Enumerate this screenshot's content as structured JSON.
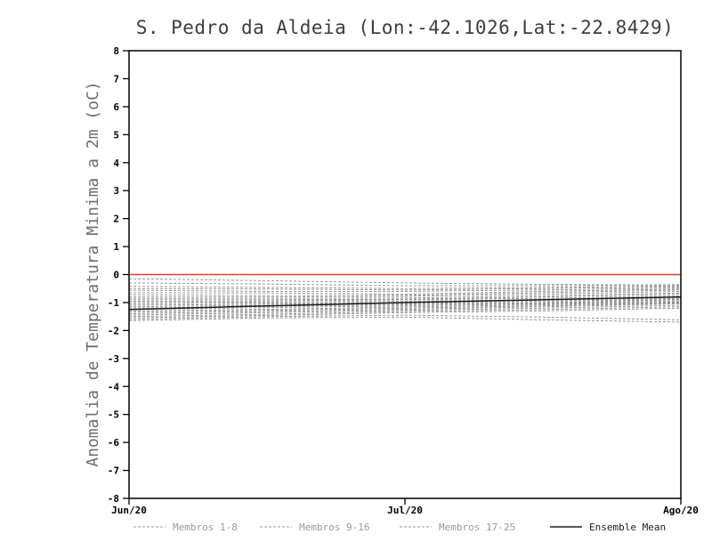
{
  "chart_data": {
    "type": "line",
    "title": "S. Pedro da Aldeia (Lon:-42.1026,Lat:-22.8429)",
    "xlabel": "",
    "ylabel": "Anomalia de Temperatura Minima a 2m (oC)",
    "ylim": [
      -8,
      8
    ],
    "ytick_step": 1,
    "grid": false,
    "legend_position": "bottom",
    "x_tick_labels": [
      "Jun/20",
      "Jul/20",
      "Ago/20"
    ],
    "x_tick_positions": [
      0,
      0.5,
      1
    ],
    "x_sample_positions": [
      0,
      0.25,
      0.5,
      0.75,
      1
    ],
    "zero_line": {
      "value": 0,
      "color": "#e23b3b"
    },
    "member_color": "#8c8c8c",
    "mean_color": "#1a1a1a",
    "legend": [
      {
        "label": "Membros 1-8",
        "style": "dashed",
        "color": "#9a9a9a"
      },
      {
        "label": "Membros 9-16",
        "style": "dashed",
        "color": "#9a9a9a"
      },
      {
        "label": "Membros 17-25",
        "style": "dashed",
        "color": "#9a9a9a"
      },
      {
        "label": "Ensemble Mean",
        "style": "solid",
        "color": "#1a1a1a"
      }
    ],
    "series": [
      {
        "name": "Ensemble Mean",
        "values": [
          -1.25,
          -1.12,
          -1.0,
          -0.9,
          -0.8
        ]
      }
    ],
    "members": [
      [
        -0.15,
        -0.22,
        -0.3,
        -0.35,
        -0.38
      ],
      [
        -0.3,
        -0.34,
        -0.4,
        -0.4,
        -0.36
      ],
      [
        -0.42,
        -0.46,
        -0.5,
        -0.46,
        -0.4
      ],
      [
        -0.5,
        -0.52,
        -0.55,
        -0.5,
        -0.44
      ],
      [
        -0.56,
        -0.6,
        -0.6,
        -0.55,
        -0.48
      ],
      [
        -0.65,
        -0.66,
        -0.7,
        -0.6,
        -0.52
      ],
      [
        -0.72,
        -0.75,
        -0.74,
        -0.65,
        -0.55
      ],
      [
        -0.8,
        -0.8,
        -0.78,
        -0.7,
        -0.6
      ],
      [
        -0.85,
        -0.85,
        -0.84,
        -0.76,
        -0.66
      ],
      [
        -0.9,
        -0.9,
        -0.88,
        -0.8,
        -0.7
      ],
      [
        -0.95,
        -0.94,
        -0.9,
        -0.85,
        -0.76
      ],
      [
        -1.0,
        -0.98,
        -0.95,
        -0.9,
        -0.8
      ],
      [
        -1.05,
        -1.02,
        -1.0,
        -0.92,
        -0.85
      ],
      [
        -1.1,
        -1.06,
        -1.02,
        -0.95,
        -0.88
      ],
      [
        -1.15,
        -1.1,
        -1.05,
        -1.0,
        -0.9
      ],
      [
        -1.2,
        -1.14,
        -1.08,
        -1.02,
        -0.94
      ],
      [
        -1.25,
        -1.18,
        -1.12,
        -1.05,
        -0.98
      ],
      [
        -1.3,
        -1.24,
        -1.16,
        -1.08,
        -1.0
      ],
      [
        -1.35,
        -1.28,
        -1.2,
        -1.12,
        -1.02
      ],
      [
        -1.4,
        -1.32,
        -1.24,
        -1.15,
        -1.05
      ],
      [
        -1.45,
        -1.36,
        -1.28,
        -1.2,
        -1.1
      ],
      [
        -1.5,
        -1.42,
        -1.32,
        -1.25,
        -1.15
      ],
      [
        -1.55,
        -1.46,
        -1.36,
        -1.3,
        -1.2
      ],
      [
        -1.6,
        -1.5,
        -1.45,
        -1.52,
        -1.62
      ],
      [
        -1.65,
        -1.55,
        -1.52,
        -1.62,
        -1.7
      ]
    ]
  }
}
